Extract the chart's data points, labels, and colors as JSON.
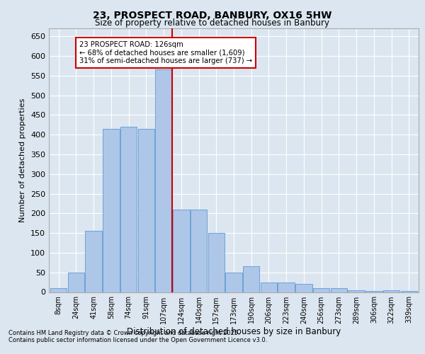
{
  "title1": "23, PROSPECT ROAD, BANBURY, OX16 5HW",
  "title2": "Size of property relative to detached houses in Banbury",
  "xlabel": "Distribution of detached houses by size in Banbury",
  "ylabel": "Number of detached properties",
  "categories": [
    "8sqm",
    "24sqm",
    "41sqm",
    "58sqm",
    "74sqm",
    "91sqm",
    "107sqm",
    "124sqm",
    "140sqm",
    "157sqm",
    "173sqm",
    "190sqm",
    "206sqm",
    "223sqm",
    "240sqm",
    "256sqm",
    "273sqm",
    "289sqm",
    "306sqm",
    "322sqm",
    "339sqm"
  ],
  "values": [
    10,
    50,
    155,
    415,
    420,
    415,
    565,
    210,
    210,
    150,
    50,
    65,
    25,
    25,
    20,
    10,
    10,
    5,
    2,
    5,
    2
  ],
  "bar_color": "#aec6e8",
  "bar_edge_color": "#5b9bd5",
  "vline_x": 7.0,
  "vline_color": "#cc0000",
  "annotation_title": "23 PROSPECT ROAD: 126sqm",
  "annotation_line1": "← 68% of detached houses are smaller (1,609)",
  "annotation_line2": "31% of semi-detached houses are larger (737) →",
  "annotation_box_color": "#cc0000",
  "ylim": [
    0,
    670
  ],
  "yticks": [
    0,
    50,
    100,
    150,
    200,
    250,
    300,
    350,
    400,
    450,
    500,
    550,
    600,
    650
  ],
  "footer1": "Contains HM Land Registry data © Crown copyright and database right 2025.",
  "footer2": "Contains public sector information licensed under the Open Government Licence v3.0.",
  "background_color": "#dce6f0",
  "plot_background": "#dce6f0"
}
